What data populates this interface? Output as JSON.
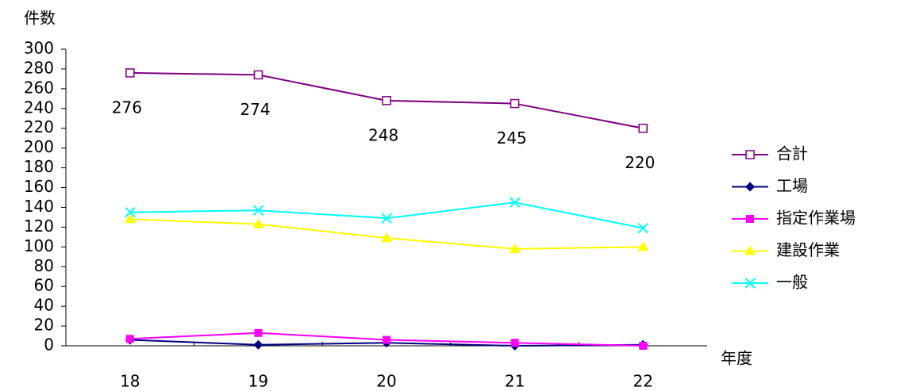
{
  "chart_data": {
    "type": "line",
    "y_label": "件数",
    "x_label": "年度",
    "categories": [
      "18",
      "19",
      "20",
      "21",
      "22"
    ],
    "series": [
      {
        "name": "合計",
        "color": "#800080",
        "marker": "square-open",
        "values": [
          276,
          274,
          248,
          245,
          220
        ],
        "data_labels": true
      },
      {
        "name": "工場",
        "color": "#000080",
        "marker": "diamond",
        "values": [
          6,
          1,
          3,
          0,
          1
        ]
      },
      {
        "name": "指定作業場",
        "color": "#ff00ff",
        "marker": "square",
        "values": [
          7,
          13,
          6,
          3,
          0
        ]
      },
      {
        "name": "建設作業",
        "color": "#ffff00",
        "marker": "triangle",
        "values": [
          128,
          123,
          109,
          98,
          100
        ]
      },
      {
        "name": "一般",
        "color": "#00ffff",
        "marker": "x",
        "values": [
          135,
          137,
          129,
          145,
          119
        ]
      }
    ],
    "ylim": [
      0,
      300
    ],
    "yticks": [
      0,
      20,
      40,
      60,
      80,
      100,
      120,
      140,
      160,
      180,
      200,
      220,
      240,
      260,
      280,
      300
    ],
    "grid": false,
    "legend": "right"
  }
}
